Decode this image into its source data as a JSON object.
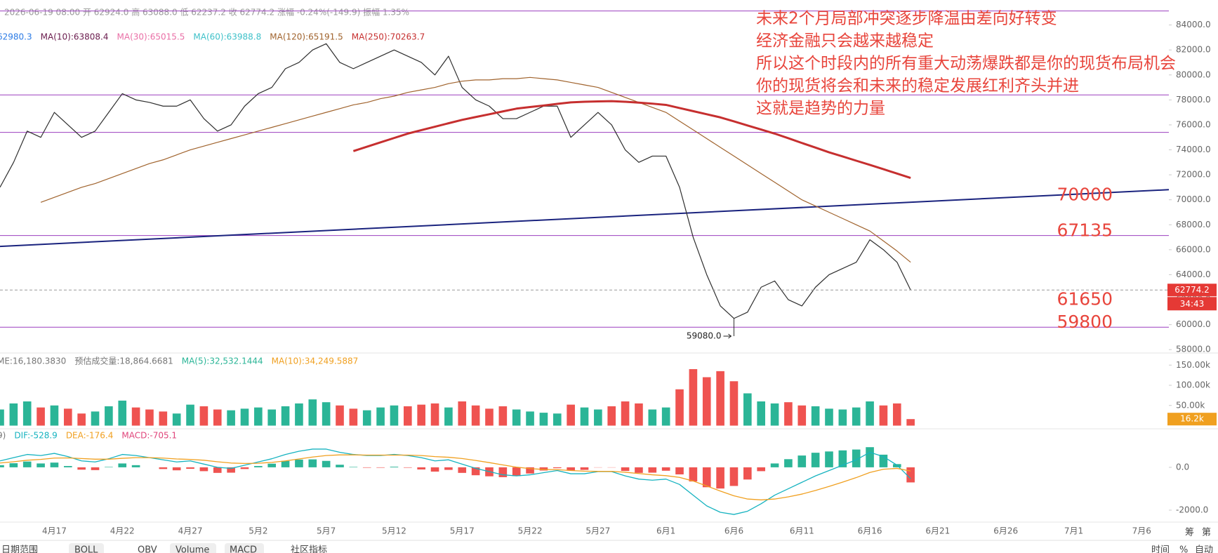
{
  "header": {
    "ohlc": "2026-06-19 08:00 开 62924.0 高 63088.0 低 62237.2 收 62774.2 涨幅 -0.24%(-149.9) 振幅 1.35%"
  },
  "toolbar": [
    "日期范围",
    "BOLL",
    "OBV",
    "Volume",
    "MACD",
    "社区指标",
    "时间",
    "%",
    "自动",
    "筹",
    "第"
  ],
  "chart_data": [
    {
      "type": "line",
      "categories": [
        null,
        null,
        null,
        null,
        "4月17",
        null,
        null,
        null,
        null,
        "4月22",
        null,
        null,
        null,
        null,
        "4月27",
        null,
        null,
        null,
        null,
        "5月2",
        null,
        null,
        null,
        null,
        "5月7",
        null,
        null,
        null,
        null,
        "5月12",
        null,
        null,
        null,
        null,
        "5月17",
        null,
        null,
        null,
        null,
        "5月22",
        null,
        null,
        null,
        null,
        "5月27",
        null,
        null,
        null,
        null,
        "6月1",
        null,
        null,
        null,
        null,
        "6月6",
        null,
        null,
        null,
        null,
        "6月11",
        null,
        null,
        null,
        null,
        "6月16",
        null,
        null,
        null,
        null,
        "6月21",
        null,
        null,
        null,
        null,
        "6月26",
        null,
        null,
        null,
        null,
        "7月1",
        null,
        null,
        null,
        null,
        "7月6",
        null,
        null
      ],
      "series": [
        {
          "color": "#2e2e2e",
          "width": 1.2,
          "values": [
            71000,
            73000,
            75500,
            75000,
            77000,
            76000,
            75000,
            75500,
            77000,
            78500,
            78000,
            77800,
            77500,
            77500,
            78000,
            76500,
            75500,
            76000,
            77500,
            78500,
            79000,
            80500,
            81000,
            82000,
            82500,
            81000,
            80500,
            81000,
            81500,
            82000,
            81500,
            81000,
            80000,
            81500,
            79000,
            78000,
            77500,
            76500,
            76500,
            77000,
            77500,
            77500,
            75000,
            76000,
            77000,
            76000,
            74000,
            73000,
            73500,
            73500,
            71000,
            67000,
            64000,
            61500,
            60500,
            61000,
            63000,
            63500,
            62000,
            61500,
            63000,
            64000,
            64500,
            65000,
            66800,
            66000,
            65000,
            62774.2,
            null,
            null,
            null,
            null,
            null,
            null,
            null,
            null,
            null,
            null,
            null,
            null,
            null,
            null,
            null,
            null,
            null,
            null,
            null
          ]
        },
        {
          "color": "#a0632d",
          "width": 1.2,
          "values": [
            null,
            null,
            null,
            69800,
            70200,
            70600,
            71000,
            71300,
            71700,
            72100,
            72500,
            72900,
            73200,
            73600,
            74000,
            74300,
            74600,
            74900,
            75200,
            75500,
            75800,
            76100,
            76400,
            76700,
            77000,
            77300,
            77600,
            77800,
            78100,
            78300,
            78600,
            78800,
            79000,
            79300,
            79500,
            79600,
            79600,
            79700,
            79700,
            79800,
            79700,
            79600,
            79400,
            79200,
            79000,
            78600,
            78200,
            77800,
            77400,
            77000,
            76300,
            75600,
            74900,
            74200,
            73500,
            72800,
            72100,
            71400,
            70700,
            70000,
            69500,
            69000,
            68500,
            68000,
            67500,
            66700,
            65900,
            65000,
            null,
            null,
            null,
            null,
            null,
            null,
            null,
            null,
            null,
            null,
            null,
            null,
            null,
            null,
            null,
            null,
            null,
            null,
            null
          ]
        },
        {
          "color": "#c62f2f",
          "width": 3,
          "values": [
            null,
            null,
            null,
            null,
            null,
            null,
            null,
            null,
            null,
            null,
            null,
            null,
            null,
            null,
            null,
            null,
            null,
            null,
            null,
            null,
            null,
            null,
            null,
            null,
            null,
            null,
            73900,
            74250,
            74600,
            74950,
            75300,
            75580,
            75850,
            76130,
            76400,
            76630,
            76850,
            77080,
            77300,
            77430,
            77550,
            77680,
            77800,
            77850,
            77880,
            77900,
            77850,
            77780,
            77700,
            77600,
            77350,
            77100,
            76850,
            76600,
            76280,
            75950,
            75630,
            75300,
            74930,
            74550,
            74180,
            73800,
            73470,
            73130,
            72800,
            72450,
            72100,
            71750,
            null,
            null,
            null,
            null,
            null,
            null,
            null,
            null,
            null,
            null,
            null,
            null,
            null,
            null,
            null,
            null,
            null,
            null,
            null
          ]
        }
      ],
      "legend": [
        {
          "text": "62980.3",
          "color": "#2c7be5"
        },
        {
          "text": "MA(10):63808.4",
          "color": "#6a1b4d"
        },
        {
          "text": "MA(30):65015.5",
          "color": "#e96fa6"
        },
        {
          "text": "MA(60):63988.8",
          "color": "#3fc1c9"
        },
        {
          "text": "MA(120):65191.5",
          "color": "#a0632d"
        },
        {
          "text": "MA(250):70263.7",
          "color": "#c62f2f"
        }
      ],
      "ylim": [
        57900,
        86000
      ],
      "yticks": [
        {
          "value": 84000,
          "label": "84000.0"
        },
        {
          "value": 82000,
          "label": "82000.0"
        },
        {
          "value": 80000,
          "label": "80000.0"
        },
        {
          "value": 78000,
          "label": "78000.0"
        },
        {
          "value": 76000,
          "label": "76000.0"
        },
        {
          "value": 74000,
          "label": "74000.0"
        },
        {
          "value": 72000,
          "label": "72000.0"
        },
        {
          "value": 70000,
          "label": "70000.0"
        },
        {
          "value": 68000,
          "label": "68000.0"
        },
        {
          "value": 66000,
          "label": "66000.0"
        },
        {
          "value": 64000,
          "label": "64000.0"
        },
        {
          "value": 62000,
          "label": "62000.0"
        },
        {
          "value": 60000,
          "label": "60000.0"
        },
        {
          "value": 58000,
          "label": "58000.0"
        }
      ],
      "levels": [
        85120,
        78400,
        75400,
        67135,
        59800
      ],
      "level_color": "#9c3fbf",
      "level_labels": [
        70000,
        67135,
        61650,
        59800
      ],
      "trend_line": {
        "color": "#1a237e",
        "values": [
          66270,
          70810
        ]
      },
      "last_price": 62774.2,
      "countdown": "34:43",
      "tag_color": "#e53935",
      "low_marker": {
        "value": 59080,
        "label": "59080.0"
      },
      "annotation": [
        "未来2个月局部冲突逐步降温由差向好转变",
        "经济金融只会越来越稳定",
        "所以这个时段内的所有重大动荡爆跌都是你的现货布局机会",
        "你的现货将会和未来的稳定发展红利齐头并进",
        "这就是趋势的力量"
      ]
    },
    {
      "type": "bar",
      "values": [
        40000,
        55000,
        60000,
        45000,
        50000,
        42000,
        30000,
        35000,
        48000,
        62000,
        45000,
        40000,
        35000,
        30000,
        52000,
        48000,
        40000,
        38000,
        42000,
        45000,
        40000,
        48000,
        55000,
        65000,
        58000,
        50000,
        42000,
        38000,
        45000,
        50000,
        48000,
        52000,
        55000,
        45000,
        60000,
        50000,
        42000,
        48000,
        40000,
        35000,
        32000,
        30000,
        52000,
        45000,
        40000,
        48000,
        60000,
        55000,
        40000,
        45000,
        90000,
        140000,
        120000,
        135000,
        110000,
        80000,
        60000,
        55000,
        58000,
        50000,
        48000,
        42000,
        40000,
        45000,
        60000,
        50000,
        55000,
        16180.383,
        null,
        null,
        null,
        null,
        null,
        null,
        null,
        null,
        null,
        null,
        null,
        null,
        null,
        null,
        null,
        null,
        null,
        null,
        null
      ],
      "up_color": "#2bb597",
      "down_color": "#ef5350",
      "legend": [
        {
          "text": "ME:16,180.3830",
          "color": "#777"
        },
        {
          "text": "预估成交量:18,864.6681",
          "color": "#777"
        },
        {
          "text": "MA(5):32,532.1444",
          "color": "#2bb597"
        },
        {
          "text": "MA(10):34,249.5887",
          "color": "#f0a020"
        }
      ],
      "ylim": [
        0,
        180000
      ],
      "yticks": [
        {
          "value": 150000,
          "label": "150.00k"
        },
        {
          "value": 100000,
          "label": "100.00k"
        },
        {
          "value": 50000,
          "label": "50.00k"
        }
      ],
      "last_tag": {
        "value": 16180.383,
        "label": "16.2k"
      },
      "last_tag_color": "#f0a020"
    },
    {
      "type": "macd",
      "series": [
        {
          "color": "#16b3c0",
          "values": [
            300,
            450,
            600,
            550,
            650,
            500,
            300,
            250,
            400,
            600,
            550,
            450,
            350,
            250,
            300,
            150,
            0,
            -50,
            100,
            250,
            400,
            600,
            750,
            850,
            850,
            700,
            600,
            550,
            550,
            600,
            550,
            450,
            300,
            350,
            150,
            -50,
            -200,
            -350,
            -400,
            -350,
            -250,
            -150,
            -300,
            -300,
            -200,
            -200,
            -400,
            -550,
            -600,
            -550,
            -800,
            -1300,
            -1800,
            -2100,
            -2200,
            -2050,
            -1700,
            -1300,
            -1000,
            -700,
            -400,
            -150,
            100,
            350,
            700,
            500,
            100,
            -528.9,
            null,
            null,
            null,
            null,
            null,
            null,
            null,
            null,
            null,
            null,
            null,
            null,
            null,
            null,
            null,
            null,
            null,
            null,
            null
          ]
        },
        {
          "color": "#f0a020",
          "values": [
            200,
            260,
            330,
            370,
            430,
            440,
            410,
            380,
            380,
            420,
            450,
            450,
            430,
            390,
            370,
            330,
            260,
            200,
            180,
            190,
            230,
            300,
            390,
            480,
            550,
            580,
            580,
            570,
            570,
            570,
            570,
            550,
            500,
            470,
            410,
            320,
            220,
            110,
            10,
            -60,
            -100,
            -110,
            -150,
            -180,
            -190,
            -190,
            -230,
            -290,
            -350,
            -390,
            -470,
            -640,
            -870,
            -1110,
            -1330,
            -1480,
            -1520,
            -1480,
            -1380,
            -1250,
            -1080,
            -890,
            -690,
            -480,
            -240,
            -90,
            -50,
            -176.4,
            null,
            null,
            null,
            null,
            null,
            null,
            null,
            null,
            null,
            null,
            null,
            null,
            null,
            null,
            null,
            null,
            null,
            null,
            null
          ]
        }
      ],
      "histogram": [
        100,
        190,
        270,
        180,
        220,
        60,
        -110,
        -130,
        20,
        180,
        100,
        0,
        -80,
        -140,
        -70,
        -180,
        -260,
        -250,
        -80,
        60,
        170,
        300,
        360,
        370,
        300,
        120,
        20,
        -20,
        -20,
        30,
        -20,
        -100,
        -200,
        -120,
        -260,
        -370,
        -420,
        -460,
        -410,
        -290,
        -150,
        -40,
        -150,
        -120,
        -10,
        -10,
        -170,
        -260,
        -250,
        -160,
        -330,
        -660,
        -930,
        -990,
        -870,
        -570,
        -180,
        180,
        380,
        550,
        680,
        740,
        790,
        830,
        940,
        590,
        150,
        -705.1,
        null,
        null,
        null,
        null,
        null,
        null,
        null,
        null,
        null,
        null,
        null,
        null,
        null,
        null,
        null,
        null,
        null,
        null,
        null
      ],
      "up_color": "#2bb597",
      "down_color": "#ef5350",
      "legend": [
        {
          "text": "9)",
          "color": "#777"
        },
        {
          "text": "DIF:-528.9",
          "color": "#16b3c0"
        },
        {
          "text": "DEA:-176.4",
          "color": "#f0a020"
        },
        {
          "text": "MACD:-705.1",
          "color": "#e0457b"
        }
      ],
      "ylim": [
        -2460,
        1700
      ],
      "yticks": [
        {
          "value": 0,
          "label": "0.0"
        },
        {
          "value": -2000,
          "label": "-2000.0"
        }
      ]
    }
  ]
}
